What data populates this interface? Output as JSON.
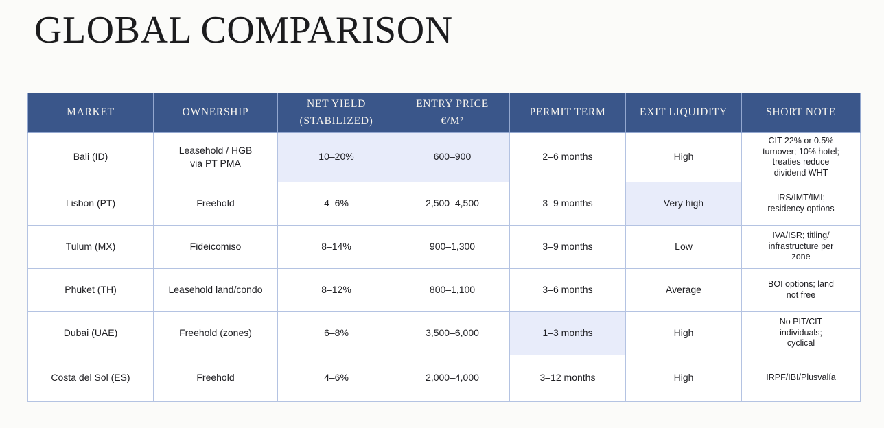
{
  "page": {
    "title": "GLOBAL COMPARISON",
    "background": "#fbfbf9"
  },
  "table": {
    "colors": {
      "header_bg": "#3a568a",
      "header_text": "#f7f4ee",
      "highlight_bg": "#e8ecfa",
      "border": "#b4c3e2",
      "body_text": "#202024",
      "row_bg": "#ffffff"
    },
    "columns": [
      {
        "key": "market",
        "label": "MARKET"
      },
      {
        "key": "ownership",
        "label": "OWNERSHIP"
      },
      {
        "key": "net_yield",
        "label": "NET YIELD\n(STABILIZED)"
      },
      {
        "key": "entry_price",
        "label": "ENTRY PRICE\n€/M²"
      },
      {
        "key": "permit_term",
        "label": "PERMIT TERM"
      },
      {
        "key": "exit_liquidity",
        "label": "EXIT LIQUIDITY"
      },
      {
        "key": "short_note",
        "label": "SHORT NOTE"
      }
    ],
    "rows": [
      {
        "market": "Bali (ID)",
        "ownership": "Leasehold / HGB\nvia PT PMA",
        "net_yield": "10–20%",
        "entry_price": "600–900",
        "permit_term": "2–6 months",
        "exit_liquidity": "High",
        "short_note": "CIT 22% or 0.5%\nturnover; 10% hotel;\ntreaties reduce\ndividend WHT",
        "highlight": [
          "net_yield",
          "entry_price"
        ]
      },
      {
        "market": "Lisbon (PT)",
        "ownership": "Freehold",
        "net_yield": "4–6%",
        "entry_price": "2,500–4,500",
        "permit_term": "3–9 months",
        "exit_liquidity": "Very high",
        "short_note": "IRS/IMT/IMI;\nresidency options",
        "highlight": [
          "exit_liquidity"
        ]
      },
      {
        "market": "Tulum (MX)",
        "ownership": "Fideicomiso",
        "net_yield": "8–14%",
        "entry_price": "900–1,300",
        "permit_term": "3–9 months",
        "exit_liquidity": "Low",
        "short_note": "IVA/ISR; titling/\ninfrastructure per\nzone",
        "highlight": []
      },
      {
        "market": "Phuket (TH)",
        "ownership": "Leasehold land/condo",
        "net_yield": "8–12%",
        "entry_price": "800–1,100",
        "permit_term": "3–6 months",
        "exit_liquidity": "Average",
        "short_note": "BOI options; land\nnot free",
        "highlight": []
      },
      {
        "market": "Dubai (UAE)",
        "ownership": "Freehold (zones)",
        "net_yield": "6–8%",
        "entry_price": "3,500–6,000",
        "permit_term": "1–3 months",
        "exit_liquidity": "High",
        "short_note": "No PIT/CIT\nindividuals;\ncyclical",
        "highlight": [
          "permit_term"
        ]
      },
      {
        "market": "Costa del Sol (ES)",
        "ownership": "Freehold",
        "net_yield": "4–6%",
        "entry_price": "2,000–4,000",
        "permit_term": "3–12 months",
        "exit_liquidity": "High",
        "short_note": "IRPF/IBI/Plusvalía",
        "highlight": []
      }
    ]
  }
}
